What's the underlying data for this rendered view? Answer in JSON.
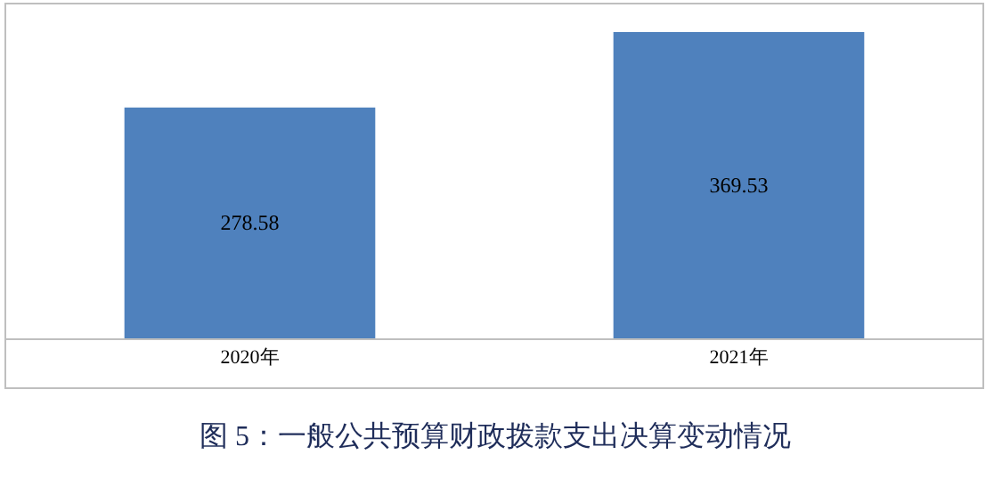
{
  "chart_data": {
    "type": "bar",
    "title": "图 5：一般公共预算财政拨款支出决算变动情况",
    "categories": [
      "2020年",
      "2021年"
    ],
    "values": [
      278.58,
      369.53
    ],
    "color": "#4f81bd",
    "data_labels": true,
    "legend": false
  }
}
